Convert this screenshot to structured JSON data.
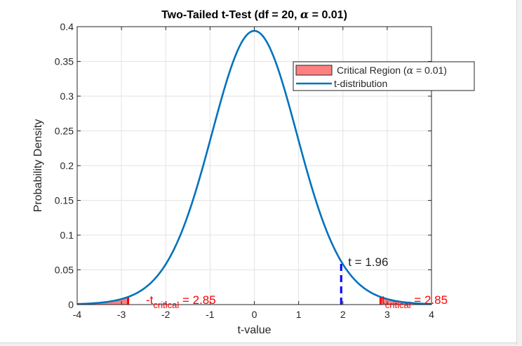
{
  "chart_data": {
    "type": "line",
    "title": "Two-Tailed  t-Test  (df  =  20,  α  =  0.01)",
    "title_parts": {
      "prefix": "Two-Tailed  t-Test  (df  =  20,  ",
      "alpha": "α",
      "suffix": "  =  0.01)"
    },
    "xlabel": "t-value",
    "ylabel": "Probability Density",
    "xlim": [
      -4,
      4
    ],
    "ylim": [
      0,
      0.4
    ],
    "xticks": [
      -4,
      -3,
      -2,
      -1,
      0,
      1,
      2,
      3,
      4
    ],
    "yticks": [
      0,
      0.05,
      0.1,
      0.15,
      0.2,
      0.25,
      0.3,
      0.35,
      0.4
    ],
    "ytick_labels": [
      "0",
      "0.05",
      "0.1",
      "0.15",
      "0.2",
      "0.25",
      "0.3",
      "0.35",
      "0.4"
    ],
    "grid": true,
    "df": 20,
    "alpha": 0.01,
    "t_critical": 2.85,
    "t_stat": 1.96,
    "series": [
      {
        "name": "t-distribution",
        "kind": "line",
        "color": "#0072BD"
      },
      {
        "name": "Critical Region (α = 0.01)",
        "kind": "area",
        "color": "#FF8080"
      }
    ],
    "legend": {
      "position": "top-right",
      "entries": [
        {
          "label_prefix": "Critical  Region  (",
          "alpha": "α",
          "label_suffix": "  =  0.01)"
        },
        {
          "label": "t-distribution"
        }
      ]
    },
    "annotations": {
      "t_stat_label": "t = 1.96",
      "neg_crit": {
        "prefix": "-t",
        "sub": "critical",
        "suffix": "  =  2.85"
      },
      "pos_crit": {
        "prefix": "t",
        "sub": "critical",
        "suffix": "  =  2.85"
      }
    },
    "colors": {
      "critical_line": "#FF0000",
      "t_stat_line": "#0000FF",
      "annotation": "#FF0000"
    }
  }
}
